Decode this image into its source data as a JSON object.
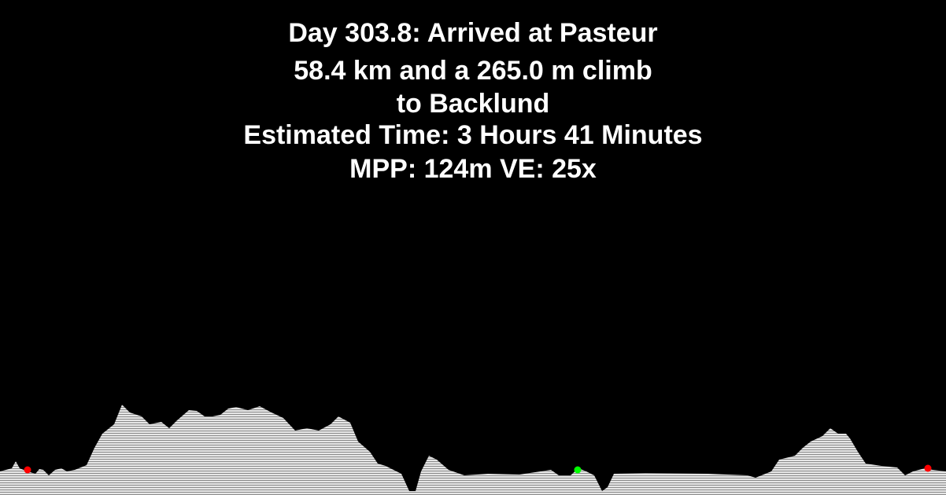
{
  "header": {
    "lines": [
      "Day 303.8: Arrived at Pasteur",
      "58.4 km and a 265.0 m climb",
      "to Backlund",
      "Estimated Time: 3 Hours 41 Minutes",
      "MPP: 124m VE: 25x"
    ]
  }
}
